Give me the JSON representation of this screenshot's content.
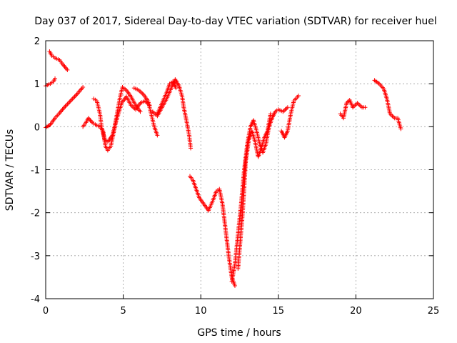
{
  "chart_data": {
    "type": "scatter",
    "title": "Day 037 of 2017, Sidereal Day-to-day VTEC variation (SDTVAR) for receiver huel",
    "xlabel": "GPS time / hours",
    "ylabel": "SDTVAR / TECUs",
    "xlim": [
      0,
      25
    ],
    "ylim": [
      -4,
      2
    ],
    "xticks": [
      0,
      5,
      10,
      15,
      20,
      25
    ],
    "yticks": [
      -4,
      -3,
      -2,
      -1,
      0,
      1,
      2
    ],
    "grid": true,
    "marker": "plus",
    "color": "#ff0000",
    "series": [
      {
        "segments": [
          [
            [
              0.0,
              0.95
            ],
            [
              0.3,
              1.0
            ],
            [
              0.5,
              1.05
            ],
            [
              0.6,
              1.12
            ]
          ],
          [
            [
              0.25,
              1.75
            ],
            [
              0.4,
              1.65
            ],
            [
              0.6,
              1.6
            ],
            [
              0.9,
              1.55
            ],
            [
              1.1,
              1.45
            ],
            [
              1.4,
              1.32
            ]
          ],
          [
            [
              0.0,
              -0.02
            ],
            [
              0.3,
              0.05
            ],
            [
              0.6,
              0.2
            ],
            [
              0.9,
              0.32
            ],
            [
              1.2,
              0.45
            ],
            [
              1.6,
              0.6
            ],
            [
              2.0,
              0.75
            ],
            [
              2.4,
              0.92
            ]
          ],
          [
            [
              2.4,
              0.0
            ],
            [
              2.6,
              0.1
            ],
            [
              2.75,
              0.2
            ],
            [
              3.0,
              0.1
            ],
            [
              3.2,
              0.05
            ],
            [
              3.5,
              0.0
            ],
            [
              3.7,
              -0.1
            ],
            [
              3.85,
              -0.45
            ],
            [
              4.0,
              -0.55
            ],
            [
              4.2,
              -0.45
            ],
            [
              4.4,
              -0.1
            ],
            [
              4.6,
              0.3
            ],
            [
              4.8,
              0.7
            ],
            [
              4.95,
              0.92
            ],
            [
              5.2,
              0.85
            ],
            [
              5.5,
              0.7
            ],
            [
              5.8,
              0.5
            ],
            [
              6.1,
              0.35
            ]
          ],
          [
            [
              3.1,
              0.65
            ],
            [
              3.3,
              0.6
            ],
            [
              3.5,
              0.3
            ],
            [
              3.6,
              0.0
            ],
            [
              3.8,
              -0.3
            ],
            [
              4.0,
              -0.35
            ],
            [
              4.3,
              -0.2
            ],
            [
              4.6,
              0.2
            ],
            [
              4.9,
              0.55
            ],
            [
              5.2,
              0.7
            ],
            [
              5.5,
              0.5
            ],
            [
              5.8,
              0.4
            ],
            [
              6.1,
              0.55
            ],
            [
              6.4,
              0.6
            ],
            [
              6.7,
              0.5
            ]
          ],
          [
            [
              5.7,
              0.9
            ],
            [
              6.0,
              0.85
            ],
            [
              6.3,
              0.75
            ],
            [
              6.6,
              0.6
            ],
            [
              6.8,
              0.3
            ],
            [
              7.0,
              0.0
            ],
            [
              7.2,
              -0.2
            ]
          ],
          [
            [
              6.9,
              0.35
            ],
            [
              7.2,
              0.25
            ],
            [
              7.5,
              0.45
            ],
            [
              7.8,
              0.65
            ],
            [
              8.1,
              0.9
            ],
            [
              8.35,
              1.1
            ],
            [
              8.6,
              0.95
            ],
            [
              8.8,
              0.7
            ],
            [
              8.9,
              0.45
            ],
            [
              9.1,
              0.1
            ],
            [
              9.25,
              -0.2
            ],
            [
              9.35,
              -0.5
            ]
          ],
          [
            [
              7.2,
              0.3
            ],
            [
              7.5,
              0.55
            ],
            [
              7.8,
              0.8
            ],
            [
              8.0,
              1.0
            ],
            [
              8.2,
              1.05
            ],
            [
              8.4,
              0.9
            ]
          ],
          [
            [
              9.3,
              -1.15
            ],
            [
              9.5,
              -1.25
            ],
            [
              9.7,
              -1.45
            ],
            [
              9.9,
              -1.65
            ],
            [
              10.2,
              -1.8
            ],
            [
              10.5,
              -1.95
            ],
            [
              10.8,
              -1.7
            ],
            [
              11.0,
              -1.5
            ],
            [
              11.2,
              -1.45
            ],
            [
              11.4,
              -1.8
            ],
            [
              11.6,
              -2.4
            ],
            [
              11.8,
              -3.0
            ],
            [
              12.0,
              -3.5
            ],
            [
              12.2,
              -3.7
            ]
          ],
          [
            [
              12.0,
              -3.6
            ],
            [
              12.2,
              -3.2
            ],
            [
              12.4,
              -2.5
            ],
            [
              12.6,
              -1.8
            ],
            [
              12.8,
              -1.0
            ],
            [
              13.0,
              -0.4
            ],
            [
              13.2,
              0.0
            ],
            [
              13.4,
              0.15
            ],
            [
              13.6,
              -0.1
            ],
            [
              13.8,
              -0.4
            ],
            [
              14.0,
              -0.6
            ],
            [
              14.2,
              -0.4
            ],
            [
              14.4,
              0.0
            ],
            [
              14.6,
              0.2
            ],
            [
              14.8,
              0.35
            ],
            [
              15.0,
              0.4
            ],
            [
              15.3,
              0.35
            ],
            [
              15.6,
              0.45
            ]
          ],
          [
            [
              12.4,
              -3.3
            ],
            [
              12.7,
              -2.0
            ],
            [
              12.9,
              -0.8
            ],
            [
              13.1,
              -0.3
            ],
            [
              13.3,
              -0.1
            ],
            [
              13.5,
              -0.35
            ],
            [
              13.7,
              -0.7
            ],
            [
              13.9,
              -0.5
            ],
            [
              14.1,
              -0.25
            ],
            [
              14.3,
              -0.1
            ],
            [
              14.5,
              0.3
            ]
          ],
          [
            [
              15.2,
              -0.1
            ],
            [
              15.4,
              -0.25
            ],
            [
              15.6,
              -0.1
            ],
            [
              15.8,
              0.3
            ],
            [
              16.0,
              0.6
            ],
            [
              16.3,
              0.72
            ]
          ],
          [
            [
              19.0,
              0.3
            ],
            [
              19.2,
              0.2
            ],
            [
              19.4,
              0.55
            ],
            [
              19.6,
              0.62
            ],
            [
              19.8,
              0.45
            ],
            [
              20.1,
              0.55
            ],
            [
              20.4,
              0.45
            ],
            [
              20.6,
              0.45
            ]
          ],
          [
            [
              21.2,
              1.08
            ],
            [
              21.5,
              1.0
            ],
            [
              21.8,
              0.88
            ],
            [
              22.0,
              0.65
            ],
            [
              22.2,
              0.3
            ],
            [
              22.5,
              0.2
            ],
            [
              22.7,
              0.2
            ],
            [
              22.9,
              -0.05
            ]
          ]
        ]
      }
    ]
  }
}
